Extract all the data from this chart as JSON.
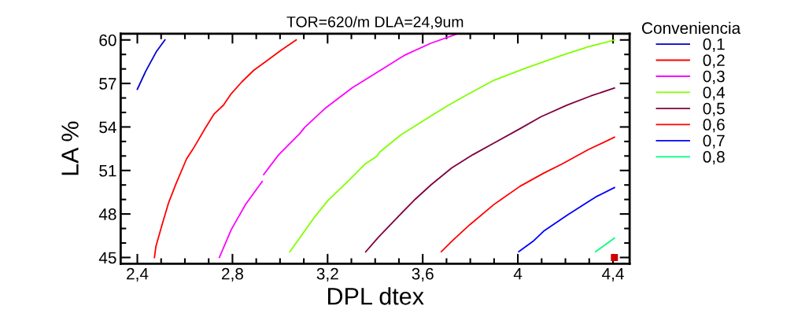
{
  "chart_data": {
    "type": "line",
    "title": "TOR=620/m DLA=24,9um",
    "xlabel": "DPL dtex",
    "ylabel": "LA %",
    "legend_title": "Conveniencia",
    "legend": "right",
    "grid": false,
    "xlim": [
      2.33,
      4.47
    ],
    "ylim": [
      44.57,
      60.43
    ],
    "xticks": [
      {
        "value": 2.4,
        "label": "2,4"
      },
      {
        "value": 2.8,
        "label": "2,8"
      },
      {
        "value": 3.2,
        "label": "3,2"
      },
      {
        "value": 3.6,
        "label": "3,6"
      },
      {
        "value": 4,
        "label": "4"
      },
      {
        "value": 4.4,
        "label": "4,4"
      }
    ],
    "yticks": [
      45,
      48,
      51,
      54,
      57,
      60
    ],
    "series": [
      {
        "name": "0,1",
        "color": "#0000cc",
        "x": [
          2.4,
          2.436,
          2.481,
          2.516
        ],
        "values": [
          56.6,
          57.87,
          59.22,
          60.0
        ]
      },
      {
        "name": "0,2",
        "color": "#ff0000",
        "x": [
          2.472,
          2.478,
          2.503,
          2.532,
          2.563,
          2.607,
          2.635,
          2.685,
          2.723,
          2.762,
          2.795,
          2.839,
          2.889,
          2.939,
          3.005,
          3.068
        ],
        "values": [
          45.0,
          45.75,
          47.2,
          48.8,
          50.1,
          51.8,
          52.5,
          53.9,
          54.9,
          55.5,
          56.3,
          57.1,
          57.9,
          58.5,
          59.3,
          60.0
        ]
      },
      {
        "name": "0,3",
        "color": "#ff00ff",
        "x": [
          2.745,
          2.795,
          2.856,
          2.925,
          2.928,
          2.931,
          2.994,
          3.082,
          3.104,
          3.193,
          3.303,
          3.436,
          3.524,
          3.634,
          3.742
        ],
        "values": [
          45.0,
          46.93,
          48.68,
          50.24,
          null,
          50.72,
          52.08,
          53.53,
          53.98,
          55.33,
          56.69,
          58.05,
          58.95,
          59.77,
          60.4
        ]
      },
      {
        "name": "0,4",
        "color": "#80ff00",
        "x": [
          3.041,
          3.104,
          3.143,
          3.201,
          3.292,
          3.358,
          3.408,
          3.419,
          3.507,
          3.612,
          3.7,
          3.788,
          3.899,
          4.031,
          4.185,
          4.295,
          4.406
        ],
        "values": [
          45.39,
          46.84,
          47.74,
          48.92,
          50.36,
          51.45,
          51.99,
          52.26,
          53.44,
          54.52,
          55.42,
          56.23,
          57.22,
          58.04,
          58.94,
          59.52,
          59.99
        ]
      },
      {
        "name": "0,5",
        "color": "#800040",
        "x": [
          3.36,
          3.413,
          3.501,
          3.568,
          3.634,
          3.722,
          3.81,
          3.899,
          4.009,
          4.097,
          4.207,
          4.307,
          4.406
        ],
        "values": [
          45.39,
          46.39,
          47.89,
          49.01,
          50.0,
          51.18,
          52.08,
          52.89,
          53.88,
          54.7,
          55.51,
          56.14,
          56.68
        ]
      },
      {
        "name": "0,6",
        "color": "#ff0000",
        "x": [
          3.678,
          3.728,
          3.8,
          3.899,
          4.009,
          4.109,
          4.186,
          4.296,
          4.406
        ],
        "values": [
          45.4,
          46.21,
          47.29,
          48.65,
          49.91,
          50.82,
          51.45,
          52.44,
          53.29
        ]
      },
      {
        "name": "0,7",
        "color": "#0000ff",
        "x": [
          4.004,
          4.064,
          4.108,
          4.208,
          4.329,
          4.406
        ],
        "values": [
          45.4,
          46.12,
          46.81,
          47.93,
          49.19,
          49.82
        ]
      },
      {
        "name": "0,8",
        "color": "#00ff80",
        "x": [
          4.327,
          4.406
        ],
        "values": [
          45.4,
          46.34
        ]
      },
      {
        "type": "scatter",
        "marker": "square",
        "color": "#cc0000",
        "x": [
          4.406
        ],
        "values": [
          45.0
        ]
      }
    ]
  }
}
